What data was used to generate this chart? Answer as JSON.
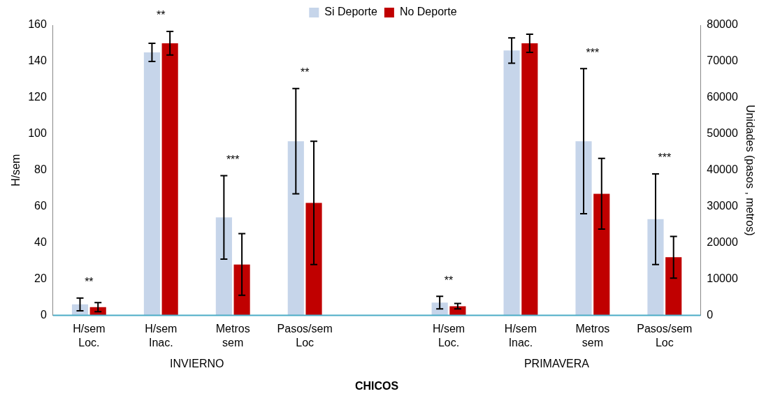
{
  "chart_data": {
    "type": "bar",
    "xlabel": "CHICOS",
    "ylabel": "H/sem",
    "y2label": "Unidades (pasos , metros)",
    "categories": [
      "H/sem\nLoc.",
      "H/sem\nInac.",
      "Metros\nsem",
      "Pasos/sem\nLoc",
      null,
      "H/sem\nLoc.",
      "H/sem\nInac.",
      "Metros\nsem",
      "Pasos/sem\nLoc"
    ],
    "series": [
      {
        "name": "Si Deporte",
        "color": "#c6d5ea",
        "values": [
          6,
          145,
          null,
          null,
          null,
          7,
          146,
          null,
          null
        ],
        "errors": [
          3.5,
          5,
          null,
          null,
          null,
          3.5,
          7,
          null,
          null
        ]
      },
      {
        "name": "No Deporte",
        "color": "#c00000",
        "values": [
          4.5,
          150,
          null,
          null,
          null,
          5,
          150,
          null,
          null
        ],
        "errors": [
          2.5,
          6.5,
          null,
          null,
          null,
          1.5,
          5,
          null,
          null
        ]
      },
      {
        "color": "#c6d5ea",
        "axis": "y2",
        "values": [
          null,
          null,
          27000,
          48000,
          null,
          null,
          null,
          48000,
          26500
        ],
        "errors": [
          null,
          null,
          11500,
          14500,
          null,
          null,
          null,
          20000,
          12500
        ]
      },
      {
        "color": "#c00000",
        "axis": "y2",
        "values": [
          null,
          null,
          14000,
          31000,
          null,
          null,
          null,
          33500,
          16000
        ],
        "errors": [
          null,
          null,
          8500,
          17000,
          null,
          null,
          null,
          9750,
          5750
        ]
      }
    ],
    "ylim": [
      0,
      160
    ],
    "yticks": [
      0,
      20,
      40,
      60,
      80,
      100,
      120,
      140,
      160
    ],
    "y2lim": [
      0,
      80000
    ],
    "y2ticks": [
      0,
      10000,
      20000,
      30000,
      40000,
      50000,
      60000,
      70000,
      80000
    ],
    "grid": false,
    "legend": "top",
    "annotations": [
      {
        "text": "**",
        "x": "H/sem\nLoc.",
        "y": 6
      },
      {
        "text": "**",
        "x": "H/sem\nInac.",
        "y": 150
      },
      "***",
      "**",
      "**",
      "***",
      "***",
      "INVIERNO",
      "PRIMAVERA"
    ]
  }
}
